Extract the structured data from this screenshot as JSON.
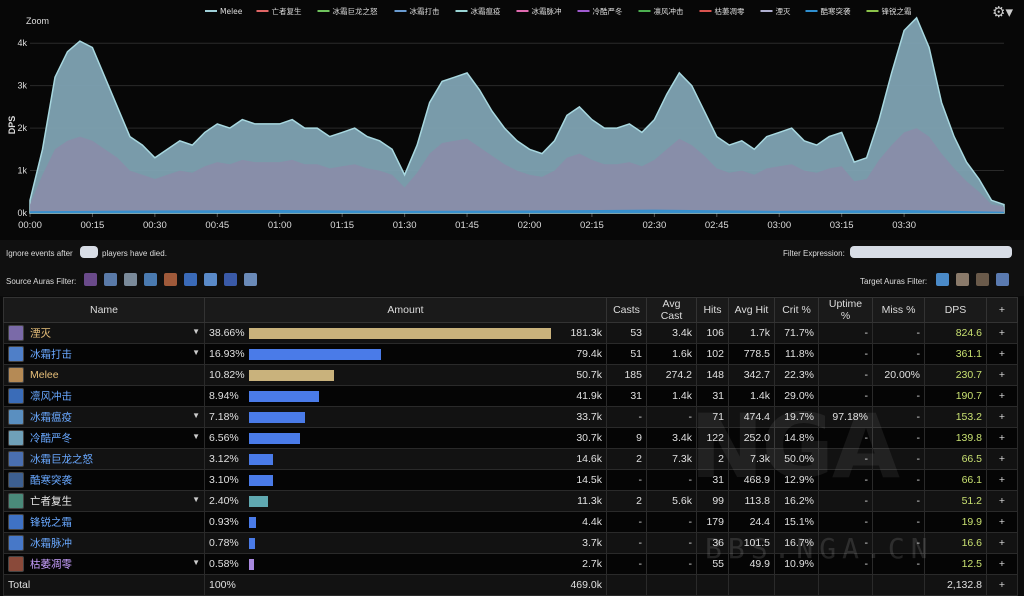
{
  "chart": {
    "zoom_label": "Zoom",
    "ylabel": "DPS",
    "gear_icon": "gear-icon",
    "legend": [
      {
        "label": "Melee",
        "color": "#9fd0d8"
      },
      {
        "label": "亡者复生",
        "color": "#e06666"
      },
      {
        "label": "冰霜巨龙之怒",
        "color": "#6fc35d"
      },
      {
        "label": "冰霜打击",
        "color": "#6a9bd1"
      },
      {
        "label": "冰霜瘟疫",
        "color": "#9ad5d5"
      },
      {
        "label": "冰霜脉冲",
        "color": "#e06bb0"
      },
      {
        "label": "冷酷严冬",
        "color": "#a05bd0"
      },
      {
        "label": "凛风冲击",
        "color": "#4caf50"
      },
      {
        "label": "枯萎凋零",
        "color": "#d9534f"
      },
      {
        "label": "湮灭",
        "color": "#b0b0d0"
      },
      {
        "label": "酷寒突袭",
        "color": "#2f8fd0"
      },
      {
        "label": "锋锐之霜",
        "color": "#8bc34a"
      }
    ],
    "chart_data": {
      "type": "area",
      "title": "",
      "xlabel": "",
      "ylabel": "DPS",
      "ylim": [
        0,
        4500
      ],
      "yticks": [
        "0k",
        "1k",
        "2k",
        "3k",
        "4k"
      ],
      "ytick_values": [
        0,
        1000,
        2000,
        3000,
        4000
      ],
      "xlim_seconds": [
        0,
        234
      ],
      "xticks": [
        "00:00",
        "00:15",
        "00:30",
        "00:45",
        "01:00",
        "01:15",
        "01:30",
        "01:45",
        "02:00",
        "02:15",
        "02:30",
        "02:45",
        "03:00",
        "03:15",
        "03:30"
      ],
      "xtick_seconds": [
        0,
        15,
        30,
        45,
        60,
        75,
        90,
        105,
        120,
        135,
        150,
        165,
        180,
        195,
        210
      ],
      "series": [
        {
          "name": "Total",
          "color": "#7fa3b3",
          "x": [
            0,
            3,
            6,
            9,
            12,
            15,
            18,
            21,
            24,
            27,
            30,
            33,
            36,
            39,
            42,
            45,
            48,
            51,
            54,
            57,
            60,
            63,
            66,
            69,
            72,
            75,
            78,
            81,
            84,
            87,
            90,
            93,
            96,
            99,
            102,
            105,
            108,
            111,
            114,
            117,
            120,
            123,
            126,
            129,
            132,
            135,
            138,
            141,
            144,
            147,
            150,
            153,
            156,
            159,
            162,
            165,
            168,
            171,
            174,
            177,
            180,
            183,
            186,
            189,
            192,
            195,
            198,
            201,
            204,
            207,
            210,
            213,
            216,
            219,
            222,
            225,
            228,
            231,
            234
          ],
          "values": [
            300,
            1500,
            3200,
            3800,
            4050,
            3900,
            3200,
            2500,
            1800,
            1600,
            1300,
            1500,
            1700,
            1600,
            1900,
            2100,
            2000,
            2200,
            2100,
            2100,
            2100,
            2200,
            2000,
            2000,
            1800,
            1900,
            2000,
            1800,
            1700,
            1500,
            900,
            1600,
            2600,
            3100,
            3200,
            3300,
            2900,
            2400,
            2000,
            1700,
            1500,
            1400,
            1700,
            2300,
            2500,
            2200,
            2000,
            2000,
            2100,
            1900,
            2200,
            2800,
            3300,
            3000,
            2400,
            1800,
            1600,
            1700,
            1500,
            1800,
            1900,
            2000,
            1700,
            1600,
            1800,
            1900,
            1200,
            1300,
            2200,
            3300,
            4300,
            4600,
            3900,
            2600,
            1800,
            1200,
            800,
            300,
            200
          ]
        },
        {
          "name": "Melee",
          "color": "#8a8da8",
          "x": [
            0,
            3,
            6,
            9,
            12,
            15,
            18,
            21,
            24,
            27,
            30,
            33,
            36,
            39,
            42,
            45,
            48,
            51,
            54,
            57,
            60,
            63,
            66,
            69,
            72,
            75,
            78,
            81,
            84,
            87,
            90,
            93,
            96,
            99,
            102,
            105,
            108,
            111,
            114,
            117,
            120,
            123,
            126,
            129,
            132,
            135,
            138,
            141,
            144,
            147,
            150,
            153,
            156,
            159,
            162,
            165,
            168,
            171,
            174,
            177,
            180,
            183,
            186,
            189,
            192,
            195,
            198,
            201,
            204,
            207,
            210,
            213,
            216,
            219,
            222,
            225,
            228,
            231,
            234
          ],
          "values": [
            200,
            900,
            1500,
            1700,
            1800,
            1700,
            1500,
            1300,
            1000,
            900,
            800,
            900,
            1000,
            950,
            1100,
            1200,
            1150,
            1250,
            1200,
            1200,
            1200,
            1250,
            1150,
            1150,
            1050,
            1100,
            1150,
            1050,
            1000,
            900,
            600,
            950,
            1400,
            1650,
            1700,
            1750,
            1550,
            1350,
            1150,
            1000,
            900,
            850,
            1000,
            1300,
            1400,
            1250,
            1150,
            1150,
            1200,
            1100,
            1250,
            1500,
            1750,
            1600,
            1350,
            1050,
            950,
            1000,
            900,
            1050,
            1100,
            1150,
            1000,
            950,
            1050,
            1100,
            750,
            800,
            1250,
            1600,
            1900,
            2000,
            1800,
            1400,
            1050,
            750,
            500,
            200,
            150
          ]
        },
        {
          "name": "酷寒突袭",
          "color": "#2f8fd0",
          "x": [
            0,
            30,
            60,
            90,
            120,
            150,
            180,
            210,
            234
          ],
          "values": [
            40,
            60,
            70,
            50,
            60,
            80,
            50,
            70,
            30
          ]
        }
      ]
    }
  },
  "controls": {
    "ignore_prefix": "Ignore events after",
    "ignore_suffix": "players have died.",
    "filter_expression_label": "Filter Expression:",
    "source_auras_label": "Source Auras Filter:",
    "target_auras_label": "Target Auras Filter:"
  },
  "table": {
    "headers": [
      "Name",
      "Amount",
      "Casts",
      "Avg Cast",
      "Hits",
      "Avg Hit",
      "Crit %",
      "Uptime %",
      "Miss %",
      "DPS",
      "+"
    ],
    "rows": [
      {
        "name": "湮灭",
        "name_color": "#e8c07a",
        "icon_color": "#7a6aa8",
        "caret": "▼",
        "pct": "38.66%",
        "bar_ratio": 1.0,
        "bar_color": "#c9b27c",
        "amount": "181.3k",
        "casts": "53",
        "avg_cast": "3.4k",
        "hits": "106",
        "avg_hit": "1.7k",
        "crit": "71.7%",
        "uptime": "-",
        "miss": "-",
        "dps": "824.6",
        "plus": "+"
      },
      {
        "name": "冰霜打击",
        "name_color": "#69a8ff",
        "icon_color": "#4f7fc8",
        "caret": "▼",
        "pct": "16.93%",
        "bar_ratio": 0.438,
        "bar_color": "#4a7be8",
        "amount": "79.4k",
        "casts": "51",
        "avg_cast": "1.6k",
        "hits": "102",
        "avg_hit": "778.5",
        "crit": "11.8%",
        "uptime": "-",
        "miss": "-",
        "dps": "361.1",
        "plus": "+"
      },
      {
        "name": "Melee",
        "name_color": "#e8c07a",
        "icon_color": "#b58a55",
        "caret": "",
        "pct": "10.82%",
        "bar_ratio": 0.28,
        "bar_color": "#c9b27c",
        "amount": "50.7k",
        "casts": "185",
        "avg_cast": "274.2",
        "hits": "148",
        "avg_hit": "342.7",
        "crit": "22.3%",
        "uptime": "-",
        "miss": "20.00%",
        "dps": "230.7",
        "plus": "+"
      },
      {
        "name": "凛风冲击",
        "name_color": "#69a8ff",
        "icon_color": "#3a6cb8",
        "caret": "",
        "pct": "8.94%",
        "bar_ratio": 0.231,
        "bar_color": "#4a7be8",
        "amount": "41.9k",
        "casts": "31",
        "avg_cast": "1.4k",
        "hits": "31",
        "avg_hit": "1.4k",
        "crit": "29.0%",
        "uptime": "-",
        "miss": "-",
        "dps": "190.7",
        "plus": "+"
      },
      {
        "name": "冰霜瘟疫",
        "name_color": "#69a8ff",
        "icon_color": "#5a8fc0",
        "caret": "▼",
        "pct": "7.18%",
        "bar_ratio": 0.186,
        "bar_color": "#4a7be8",
        "amount": "33.7k",
        "casts": "-",
        "avg_cast": "-",
        "hits": "71",
        "avg_hit": "474.4",
        "crit": "19.7%",
        "uptime": "97.18%",
        "miss": "-",
        "dps": "153.2",
        "plus": "+"
      },
      {
        "name": "冷酷严冬",
        "name_color": "#69a8ff",
        "icon_color": "#6fa0b8",
        "caret": "▼",
        "pct": "6.56%",
        "bar_ratio": 0.17,
        "bar_color": "#4a7be8",
        "amount": "30.7k",
        "casts": "9",
        "avg_cast": "3.4k",
        "hits": "122",
        "avg_hit": "252.0",
        "crit": "14.8%",
        "uptime": "-",
        "miss": "-",
        "dps": "139.8",
        "plus": "+"
      },
      {
        "name": "冰霜巨龙之怒",
        "name_color": "#69a8ff",
        "icon_color": "#4a6fb0",
        "caret": "",
        "pct": "3.12%",
        "bar_ratio": 0.081,
        "bar_color": "#4a7be8",
        "amount": "14.6k",
        "casts": "2",
        "avg_cast": "7.3k",
        "hits": "2",
        "avg_hit": "7.3k",
        "crit": "50.0%",
        "uptime": "-",
        "miss": "-",
        "dps": "66.5",
        "plus": "+"
      },
      {
        "name": "酷寒突袭",
        "name_color": "#69a8ff",
        "icon_color": "#3d5f90",
        "caret": "",
        "pct": "3.10%",
        "bar_ratio": 0.08,
        "bar_color": "#4a7be8",
        "amount": "14.5k",
        "casts": "-",
        "avg_cast": "-",
        "hits": "31",
        "avg_hit": "468.9",
        "crit": "12.9%",
        "uptime": "-",
        "miss": "-",
        "dps": "66.1",
        "plus": "+"
      },
      {
        "name": "亡者复生",
        "name_color": "#e8e8e8",
        "icon_color": "#4a8a7a",
        "caret": "▼",
        "pct": "2.40%",
        "bar_ratio": 0.062,
        "bar_color": "#5fa8b0",
        "amount": "11.3k",
        "casts": "2",
        "avg_cast": "5.6k",
        "hits": "99",
        "avg_hit": "113.8",
        "crit": "16.2%",
        "uptime": "-",
        "miss": "-",
        "dps": "51.2",
        "plus": "+"
      },
      {
        "name": "锋锐之霜",
        "name_color": "#69a8ff",
        "icon_color": "#3f72c4",
        "caret": "",
        "pct": "0.93%",
        "bar_ratio": 0.024,
        "bar_color": "#4a7be8",
        "amount": "4.4k",
        "casts": "-",
        "avg_cast": "-",
        "hits": "179",
        "avg_hit": "24.4",
        "crit": "15.1%",
        "uptime": "-",
        "miss": "-",
        "dps": "19.9",
        "plus": "+"
      },
      {
        "name": "冰霜脉冲",
        "name_color": "#69a8ff",
        "icon_color": "#4778c8",
        "caret": "",
        "pct": "0.78%",
        "bar_ratio": 0.02,
        "bar_color": "#4a7be8",
        "amount": "3.7k",
        "casts": "-",
        "avg_cast": "-",
        "hits": "36",
        "avg_hit": "101.5",
        "crit": "16.7%",
        "uptime": "-",
        "miss": "-",
        "dps": "16.6",
        "plus": "+"
      },
      {
        "name": "枯萎凋零",
        "name_color": "#c8a0ff",
        "icon_color": "#8a4a3a",
        "caret": "▼",
        "pct": "0.58%",
        "bar_ratio": 0.015,
        "bar_color": "#a98ae0",
        "amount": "2.7k",
        "casts": "-",
        "avg_cast": "-",
        "hits": "55",
        "avg_hit": "49.9",
        "crit": "10.9%",
        "uptime": "-",
        "miss": "-",
        "dps": "12.5",
        "plus": "+"
      }
    ],
    "total": {
      "label": "Total",
      "pct": "100%",
      "amount": "469.0k",
      "casts": "",
      "avg_cast": "",
      "hits": "",
      "avg_hit": "",
      "crit": "",
      "uptime": "",
      "miss": "",
      "dps": "2,132.8",
      "plus": "+"
    }
  },
  "watermark": {
    "logo": "NGA",
    "site": "BBS.NGA.CN"
  },
  "source_auras": [
    {
      "icon": "aura-icon-1",
      "color": "#6a4a8a"
    },
    {
      "icon": "aura-icon-2",
      "color": "#5a7aa8"
    },
    {
      "icon": "aura-icon-3",
      "color": "#7a8a9a"
    },
    {
      "icon": "aura-icon-4",
      "color": "#4a7ab0"
    },
    {
      "icon": "aura-icon-5",
      "color": "#a05a3a"
    },
    {
      "icon": "aura-icon-6",
      "color": "#3a6ab8"
    },
    {
      "icon": "aura-icon-7",
      "color": "#5a8ac8"
    },
    {
      "icon": "aura-icon-8",
      "color": "#3a5aa8"
    },
    {
      "icon": "aura-icon-9",
      "color": "#6a8ab8"
    }
  ],
  "target_auras": [
    {
      "icon": "target-aura-icon-1",
      "color": "#4a8ac8"
    },
    {
      "icon": "target-aura-icon-2",
      "color": "#8a7a6a"
    },
    {
      "icon": "target-aura-icon-3",
      "color": "#6a5a4a"
    },
    {
      "icon": "target-aura-icon-4",
      "color": "#5a7ab0"
    }
  ]
}
